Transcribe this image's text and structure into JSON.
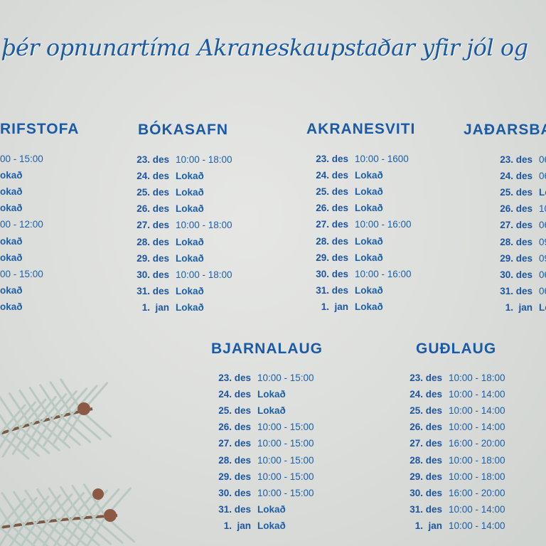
{
  "title": "þér opnunartíma Akraneskaupstaðar yfir jól og",
  "colors": {
    "text": "#1b5fab",
    "background": "#dcdedb"
  },
  "sections": {
    "skrifstofa": {
      "heading": "RIFSTOFA",
      "rows": [
        {
          "time": "00 - 15:00"
        },
        {
          "time": "okað",
          "closed": true
        },
        {
          "time": "okað",
          "closed": true
        },
        {
          "time": "okað",
          "closed": true
        },
        {
          "time": "00 - 12:00"
        },
        {
          "time": "okað",
          "closed": true
        },
        {
          "time": "okað",
          "closed": true
        },
        {
          "time": "00 - 15:00"
        },
        {
          "time": "okað",
          "closed": true
        },
        {
          "time": "okað",
          "closed": true
        }
      ]
    },
    "bokasafn": {
      "heading": "BÓKASAFN",
      "rows": [
        {
          "date": "23. des",
          "time": "10:00 - 18:00"
        },
        {
          "date": "24. des",
          "time": "Lokað",
          "closed": true
        },
        {
          "date": "25. des",
          "time": "Lokað",
          "closed": true
        },
        {
          "date": "26. des",
          "time": "Lokað",
          "closed": true
        },
        {
          "date": "27. des",
          "time": "10:00 - 18:00"
        },
        {
          "date": "28. des",
          "time": "Lokað",
          "closed": true
        },
        {
          "date": "29. des",
          "time": "Lokað",
          "closed": true
        },
        {
          "date": "30. des",
          "time": "10:00 - 18:00"
        },
        {
          "date": "31. des",
          "time": "Lokað",
          "closed": true
        },
        {
          "date": "1.  jan",
          "time": "Lokað",
          "closed": true
        }
      ]
    },
    "akranesviti": {
      "heading": "AKRANESVITI",
      "rows": [
        {
          "date": "23. des",
          "time": "10:00 - 1600"
        },
        {
          "date": "24. des",
          "time": "Lokað",
          "closed": true
        },
        {
          "date": "25. des",
          "time": "Lokað",
          "closed": true
        },
        {
          "date": "26. des",
          "time": "Lokað",
          "closed": true
        },
        {
          "date": "27. des",
          "time": "10:00 - 16:00"
        },
        {
          "date": "28. des",
          "time": "Lokað",
          "closed": true
        },
        {
          "date": "29. des",
          "time": "Lokað",
          "closed": true
        },
        {
          "date": "30. des",
          "time": "10:00 - 16:00"
        },
        {
          "date": "31. des",
          "time": "Lokað",
          "closed": true
        },
        {
          "date": "1.  jan",
          "time": "Lokað",
          "closed": true
        }
      ]
    },
    "jadarsbakkar": {
      "heading": "JAÐARSBA",
      "rows": [
        {
          "date": "23. des",
          "time": "06"
        },
        {
          "date": "24. des",
          "time": "06"
        },
        {
          "date": "25. des",
          "time": "Lo",
          "closed": true
        },
        {
          "date": "26. des",
          "time": "10"
        },
        {
          "date": "27. des",
          "time": "06"
        },
        {
          "date": "28. des",
          "time": "09"
        },
        {
          "date": "29. des",
          "time": "09"
        },
        {
          "date": "30. des",
          "time": "06"
        },
        {
          "date": "31. des",
          "time": "06"
        },
        {
          "date": "1.  jan",
          "time": "Lo",
          "closed": true
        }
      ]
    },
    "bjarnalaug": {
      "heading": "BJARNALAUG",
      "rows": [
        {
          "date": "23. des",
          "time": "10:00 - 15:00"
        },
        {
          "date": "24. des",
          "time": "Lokað",
          "closed": true
        },
        {
          "date": "25. des",
          "time": "Lokað",
          "closed": true
        },
        {
          "date": "26. des",
          "time": "10:00 - 15:00"
        },
        {
          "date": "27. des",
          "time": "10:00 - 15:00"
        },
        {
          "date": "28. des",
          "time": "10:00 - 15:00"
        },
        {
          "date": "29. des",
          "time": "10:00 - 15:00"
        },
        {
          "date": "30. des",
          "time": "10:00 - 15:00"
        },
        {
          "date": "31. des",
          "time": "Lokað",
          "closed": true
        },
        {
          "date": "1.  jan",
          "time": "Lokað",
          "closed": true
        }
      ]
    },
    "gudlaug": {
      "heading": "GUÐLAUG",
      "rows": [
        {
          "date": "23. des",
          "time": "10:00 - 18:00"
        },
        {
          "date": "24. des",
          "time": "10:00 - 14:00"
        },
        {
          "date": "25. des",
          "time": "10:00 - 14:00"
        },
        {
          "date": "26. des",
          "time": "10:00 - 14:00"
        },
        {
          "date": "27. des",
          "time": "16:00 - 20:00"
        },
        {
          "date": "28. des",
          "time": "10:00 - 18:00"
        },
        {
          "date": "29. des",
          "time": "10:00 - 18:00"
        },
        {
          "date": "30. des",
          "time": "16:00 - 20:00"
        },
        {
          "date": "31. des",
          "time": "10:00 - 14:00"
        },
        {
          "date": "1.  jan",
          "time": "10:00 - 14:00"
        }
      ]
    }
  }
}
